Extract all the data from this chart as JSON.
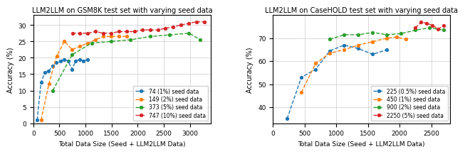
{
  "title1": "LLM2LLM on GSM8K test set with varying seed data",
  "title2": "LLM2LLM on CaseHOLD test set with varying seed data",
  "xlabel": "Total Data Size (Seed + LLM2LLM Data)",
  "ylabel": "Accuracy (%)",
  "gsm8k": {
    "series": [
      {
        "label": "74 (1%) seed data",
        "color": "#1f77b4",
        "x": [
          74,
          148,
          222,
          296,
          370,
          444,
          518,
          592,
          666,
          740,
          814,
          888,
          962,
          1036
        ],
        "y": [
          1.0,
          12.5,
          15.5,
          16.0,
          17.5,
          18.5,
          19.0,
          19.5,
          19.0,
          16.5,
          19.0,
          19.5,
          19.0,
          19.5
        ]
      },
      {
        "label": "149 (2%) seed data",
        "color": "#ff7f0e",
        "x": [
          149,
          298,
          447,
          596,
          745,
          894,
          1043,
          1192,
          1341,
          1490,
          1639,
          1788
        ],
        "y": [
          1.0,
          12.0,
          20.5,
          25.0,
          22.5,
          23.5,
          24.5,
          25.5,
          26.5,
          26.5,
          26.5,
          26.5
        ]
      },
      {
        "label": "373 (5%) seed data",
        "color": "#2ca02c",
        "x": [
          373,
          746,
          1119,
          1492,
          1865,
          2238,
          2611,
          2984,
          3200
        ],
        "y": [
          10.0,
          21.0,
          24.5,
          25.0,
          25.5,
          26.5,
          27.0,
          27.5,
          25.5
        ]
      },
      {
        "label": "747 (10%) seed data",
        "color": "#d62728",
        "x": [
          747,
          894,
          1043,
          1192,
          1341,
          1492,
          1639,
          1788,
          1937,
          2086,
          2235,
          2384,
          2533,
          2682,
          2831,
          2980,
          3129,
          3278
        ],
        "y": [
          27.5,
          27.5,
          27.5,
          28.0,
          27.5,
          27.5,
          28.0,
          28.0,
          28.0,
          28.5,
          28.5,
          28.5,
          29.0,
          29.5,
          30.0,
          30.5,
          31.0,
          31.0
        ]
      }
    ],
    "xlim": [
      0,
      3400
    ],
    "ylim": [
      0,
      33
    ],
    "yticks": [
      0,
      5,
      10,
      15,
      20,
      25,
      30
    ]
  },
  "casehold": {
    "series": [
      {
        "label": "225 (0.5%) seed data",
        "color": "#1f77b4",
        "x": [
          225,
          450,
          675,
          900,
          1125,
          1350,
          1575,
          1800
        ],
        "y": [
          35.0,
          53.0,
          56.5,
          64.5,
          67.0,
          65.5,
          63.0,
          65.0
        ]
      },
      {
        "label": "450 (1%) seed data",
        "color": "#ff7f0e",
        "x": [
          450,
          675,
          900,
          1125,
          1350,
          1575,
          1800,
          1950,
          2100
        ],
        "y": [
          46.5,
          59.0,
          63.5,
          65.0,
          67.0,
          68.5,
          70.0,
          70.5,
          69.5
        ]
      },
      {
        "label": "900 (2%) seed data",
        "color": "#2ca02c",
        "x": [
          900,
          1125,
          1350,
          1575,
          1800,
          2025,
          2250,
          2475,
          2700
        ],
        "y": [
          69.5,
          71.5,
          71.5,
          72.5,
          71.5,
          72.0,
          73.5,
          74.5,
          73.5
        ]
      },
      {
        "label": "2250 (5%) seed data",
        "color": "#d62728",
        "x": [
          2250,
          2340,
          2430,
          2520,
          2610,
          2700
        ],
        "y": [
          74.5,
          77.0,
          76.5,
          75.5,
          74.0,
          75.5
        ]
      }
    ],
    "xlim": [
      0,
      2800
    ],
    "ylim": [
      33,
      80
    ],
    "yticks": [
      40,
      50,
      60,
      70
    ]
  }
}
